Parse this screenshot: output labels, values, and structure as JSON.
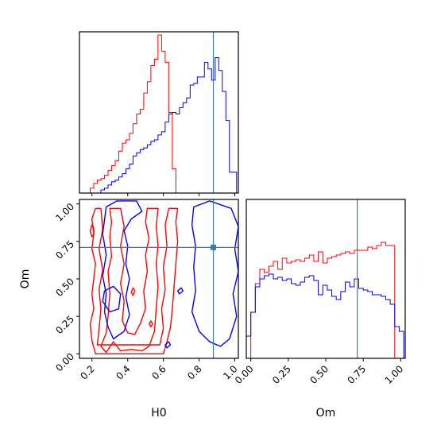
{
  "chart_data": {
    "type": "corner",
    "params": [
      "H0",
      "Om"
    ],
    "colors": {
      "red": "#ff0000",
      "blue": "#0000ff",
      "truth": "#3a7bb8",
      "frame": "#000000"
    },
    "truth": {
      "H0": 0.88,
      "Om": 0.71
    },
    "axes": {
      "H0": {
        "xlim": [
          0.13,
          1.02
        ],
        "ticks": [
          0.2,
          0.4,
          0.6,
          0.8,
          1.0
        ],
        "tick_labels": [
          "0.2",
          "0.4",
          "0.6",
          "0.8",
          "1.0"
        ],
        "xlabel": "H0"
      },
      "Om": {
        "lim": [
          -0.03,
          1.03
        ],
        "ticks": [
          0.0,
          0.25,
          0.5,
          0.75,
          1.0
        ],
        "tick_labels": [
          "0.00",
          "0.25",
          "0.50",
          "0.75",
          "1.00"
        ],
        "label": "Om"
      }
    },
    "hist_H0": {
      "bin_edges": [
        0.13,
        0.15,
        0.17,
        0.19,
        0.21,
        0.23,
        0.25,
        0.27,
        0.29,
        0.31,
        0.33,
        0.35,
        0.37,
        0.39,
        0.41,
        0.43,
        0.45,
        0.47,
        0.49,
        0.51,
        0.53,
        0.55,
        0.57,
        0.59,
        0.61,
        0.63,
        0.65,
        0.67,
        0.69,
        0.71,
        0.73,
        0.75,
        0.77,
        0.79,
        0.81,
        0.83,
        0.85,
        0.87,
        0.89,
        0.91,
        0.93,
        0.95,
        0.97,
        0.99,
        1.01
      ],
      "series": [
        {
          "color": "red",
          "values": [
            0,
            0,
            0,
            0.03,
            0.06,
            0.08,
            0.09,
            0.11,
            0.14,
            0.17,
            0.2,
            0.26,
            0.31,
            0.33,
            0.37,
            0.43,
            0.49,
            0.52,
            0.62,
            0.69,
            0.79,
            0.83,
            0.98,
            0.88,
            0.81,
            0.5,
            0.15,
            0.0,
            0,
            0,
            0,
            0,
            0,
            0,
            0,
            0,
            0,
            0,
            0,
            0,
            0,
            0,
            0,
            0
          ]
        },
        {
          "color": "blue",
          "values": [
            0,
            0,
            0,
            0,
            0,
            0,
            0.02,
            0.03,
            0.05,
            0.07,
            0.08,
            0.1,
            0.12,
            0.15,
            0.18,
            0.23,
            0.25,
            0.27,
            0.28,
            0.3,
            0.32,
            0.33,
            0.36,
            0.38,
            0.44,
            0.49,
            0.5,
            0.49,
            0.53,
            0.56,
            0.59,
            0.67,
            0.68,
            0.72,
            0.72,
            0.81,
            0.77,
            0.7,
            0.84,
            0.76,
            0.63,
            0.45,
            0.13,
            0.13
          ]
        }
      ]
    },
    "hist_Om": {
      "bin_edges": [
        -0.03,
        0.0,
        0.03,
        0.06,
        0.09,
        0.12,
        0.15,
        0.18,
        0.21,
        0.24,
        0.27,
        0.3,
        0.33,
        0.36,
        0.39,
        0.42,
        0.45,
        0.48,
        0.51,
        0.54,
        0.57,
        0.6,
        0.63,
        0.66,
        0.69,
        0.72,
        0.75,
        0.78,
        0.81,
        0.84,
        0.87,
        0.9,
        0.93,
        0.96,
        0.99,
        1.02
      ],
      "series": [
        {
          "color": "red",
          "values": [
            0,
            0.29,
            0.47,
            0.56,
            0.54,
            0.58,
            0.61,
            0.56,
            0.63,
            0.6,
            0.61,
            0.62,
            0.61,
            0.63,
            0.65,
            0.61,
            0.67,
            0.6,
            0.63,
            0.64,
            0.65,
            0.66,
            0.67,
            0.66,
            0.68,
            0.68,
            0.68,
            0.7,
            0.69,
            0.71,
            0.73,
            0.71,
            0.71,
            0.0,
            0
          ]
        },
        {
          "color": "blue",
          "values": [
            0.14,
            0.29,
            0.45,
            0.5,
            0.52,
            0.53,
            0.5,
            0.51,
            0.49,
            0.5,
            0.47,
            0.46,
            0.48,
            0.51,
            0.52,
            0.49,
            0.4,
            0.46,
            0.43,
            0.39,
            0.37,
            0.42,
            0.48,
            0.45,
            0.5,
            0.44,
            0.43,
            0.42,
            0.4,
            0.4,
            0.39,
            0.37,
            0.34,
            0.2,
            0.17
          ]
        }
      ]
    },
    "contours_H0_Om": [
      {
        "color": "red",
        "paths": [
          [
            [
              0.3,
              0.97
            ],
            [
              0.31,
              0.88
            ],
            [
              0.3,
              0.78
            ],
            [
              0.31,
              0.65
            ],
            [
              0.29,
              0.55
            ],
            [
              0.3,
              0.4
            ],
            [
              0.29,
              0.25
            ],
            [
              0.28,
              0.14
            ],
            [
              0.25,
              0.05
            ],
            [
              0.28,
              0.01
            ],
            [
              0.32,
              0.08
            ],
            [
              0.36,
              0.02
            ],
            [
              0.42,
              0.03
            ],
            [
              0.48,
              0.02
            ],
            [
              0.52,
              0.05
            ],
            [
              0.55,
              0.15
            ],
            [
              0.56,
              0.3
            ],
            [
              0.57,
              0.45
            ],
            [
              0.56,
              0.6
            ],
            [
              0.57,
              0.72
            ],
            [
              0.56,
              0.85
            ],
            [
              0.57,
              0.97
            ],
            [
              0.51,
              0.97
            ],
            [
              0.5,
              0.88
            ],
            [
              0.52,
              0.77
            ],
            [
              0.5,
              0.66
            ],
            [
              0.51,
              0.55
            ],
            [
              0.49,
              0.42
            ],
            [
              0.5,
              0.3
            ],
            [
              0.47,
              0.2
            ],
            [
              0.44,
              0.13
            ],
            [
              0.4,
              0.14
            ],
            [
              0.37,
              0.22
            ],
            [
              0.38,
              0.35
            ],
            [
              0.36,
              0.47
            ],
            [
              0.38,
              0.6
            ],
            [
              0.36,
              0.72
            ],
            [
              0.38,
              0.85
            ],
            [
              0.36,
              0.97
            ],
            [
              0.3,
              0.97
            ]
          ],
          [
            [
              0.22,
              0.97
            ],
            [
              0.2,
              0.9
            ],
            [
              0.21,
              0.8
            ],
            [
              0.2,
              0.7
            ],
            [
              0.22,
              0.6
            ],
            [
              0.21,
              0.5
            ],
            [
              0.2,
              0.4
            ],
            [
              0.21,
              0.3
            ],
            [
              0.19,
              0.2
            ],
            [
              0.2,
              0.09
            ],
            [
              0.22,
              0.0
            ],
            [
              0.6,
              0.0
            ],
            [
              0.62,
              0.08
            ],
            [
              0.64,
              0.18
            ],
            [
              0.65,
              0.3
            ],
            [
              0.66,
              0.45
            ],
            [
              0.67,
              0.6
            ],
            [
              0.68,
              0.75
            ],
            [
              0.67,
              0.88
            ],
            [
              0.68,
              0.97
            ],
            [
              0.63,
              0.97
            ],
            [
              0.61,
              0.86
            ],
            [
              0.62,
              0.72
            ],
            [
              0.6,
              0.58
            ],
            [
              0.61,
              0.43
            ],
            [
              0.59,
              0.3
            ],
            [
              0.6,
              0.17
            ],
            [
              0.58,
              0.06
            ],
            [
              0.23,
              0.06
            ],
            [
              0.24,
              0.17
            ],
            [
              0.25,
              0.3
            ],
            [
              0.24,
              0.43
            ],
            [
              0.26,
              0.56
            ],
            [
              0.24,
              0.7
            ],
            [
              0.26,
              0.83
            ],
            [
              0.25,
              0.97
            ],
            [
              0.22,
              0.97
            ]
          ],
          [
            [
              0.2,
              0.78
            ],
            [
              0.21,
              0.8
            ],
            [
              0.21,
              0.84
            ],
            [
              0.2,
              0.86
            ],
            [
              0.19,
              0.82
            ],
            [
              0.2,
              0.78
            ]
          ],
          [
            [
              0.43,
              0.39
            ],
            [
              0.44,
              0.42
            ],
            [
              0.43,
              0.44
            ],
            [
              0.42,
              0.41
            ],
            [
              0.43,
              0.39
            ]
          ],
          [
            [
              0.53,
              0.18
            ],
            [
              0.54,
              0.2
            ],
            [
              0.53,
              0.22
            ],
            [
              0.52,
              0.2
            ],
            [
              0.53,
              0.18
            ]
          ]
        ]
      },
      {
        "color": "blue",
        "paths": [
          [
            [
              0.28,
              0.98
            ],
            [
              0.34,
              1.02
            ],
            [
              0.45,
              1.02
            ],
            [
              0.48,
              0.95
            ],
            [
              0.42,
              0.9
            ],
            [
              0.38,
              0.82
            ],
            [
              0.4,
              0.72
            ],
            [
              0.39,
              0.6
            ],
            [
              0.41,
              0.5
            ],
            [
              0.39,
              0.38
            ],
            [
              0.41,
              0.26
            ],
            [
              0.38,
              0.15
            ],
            [
              0.32,
              0.1
            ],
            [
              0.29,
              0.18
            ],
            [
              0.27,
              0.28
            ],
            [
              0.28,
              0.4
            ],
            [
              0.26,
              0.52
            ],
            [
              0.28,
              0.66
            ],
            [
              0.26,
              0.8
            ],
            [
              0.28,
              0.98
            ]
          ],
          [
            [
              0.77,
              0.98
            ],
            [
              0.86,
              1.02
            ],
            [
              0.98,
              0.97
            ],
            [
              1.02,
              0.85
            ],
            [
              1.0,
              0.7
            ],
            [
              1.02,
              0.55
            ],
            [
              0.99,
              0.4
            ],
            [
              1.01,
              0.25
            ],
            [
              0.97,
              0.1
            ],
            [
              0.92,
              0.05
            ],
            [
              0.86,
              0.08
            ],
            [
              0.8,
              0.15
            ],
            [
              0.76,
              0.28
            ],
            [
              0.78,
              0.42
            ],
            [
              0.77,
              0.58
            ],
            [
              0.78,
              0.72
            ],
            [
              0.76,
              0.86
            ],
            [
              0.77,
              0.98
            ]
          ],
          [
            [
              0.26,
              0.35
            ],
            [
              0.3,
              0.28
            ],
            [
              0.35,
              0.3
            ],
            [
              0.36,
              0.4
            ],
            [
              0.32,
              0.45
            ],
            [
              0.27,
              0.42
            ],
            [
              0.26,
              0.35
            ]
          ],
          [
            [
              0.69,
              0.4
            ],
            [
              0.71,
              0.42
            ],
            [
              0.7,
              0.44
            ],
            [
              0.68,
              0.42
            ],
            [
              0.69,
              0.4
            ]
          ],
          [
            [
              0.62,
              0.04
            ],
            [
              0.64,
              0.06
            ],
            [
              0.63,
              0.08
            ],
            [
              0.61,
              0.06
            ],
            [
              0.62,
              0.04
            ]
          ]
        ]
      }
    ]
  }
}
